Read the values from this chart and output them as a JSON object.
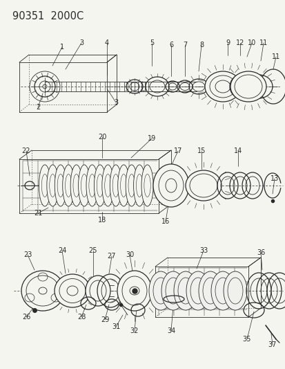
{
  "title": "90351  2000C",
  "bg_color": "#f5f5f0",
  "line_color": "#2a2a2a",
  "fig_width": 4.14,
  "fig_height": 5.33,
  "dpi": 100
}
